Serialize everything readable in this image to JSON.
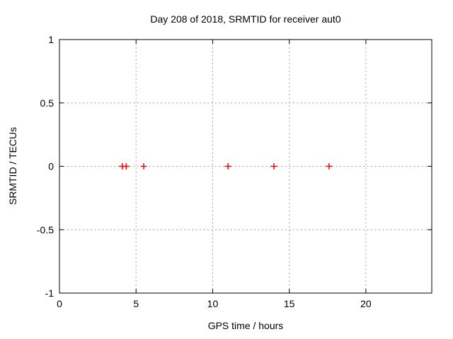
{
  "figure": {
    "background": "#ffffff"
  },
  "chart_data": {
    "type": "scatter",
    "title": "Day 208 of 2018, SRMTID for receiver aut0",
    "xlabel": "GPS time / hours",
    "ylabel": "SRMTID / TECUs",
    "xlim": [
      0,
      24.3
    ],
    "ylim": [
      -1,
      1
    ],
    "xticks": {
      "values": [
        0,
        5,
        10,
        15,
        20
      ],
      "labels": [
        "0",
        "5",
        "10",
        "15",
        "20"
      ]
    },
    "yticks": {
      "values": [
        -1,
        -0.5,
        0,
        0.5,
        1
      ],
      "labels": [
        "-1",
        "-0.5",
        "0",
        "0.5",
        "1"
      ]
    },
    "grid": true,
    "legend": "none",
    "colors": {
      "grid": "#a0a0a0",
      "axis": "#000000",
      "text": "#000000"
    },
    "series": [
      {
        "name": "SRMTID",
        "marker": "plus",
        "color": "#ff0000",
        "points": [
          [
            4.1,
            0
          ],
          [
            4.35,
            0
          ],
          [
            5.5,
            0
          ],
          [
            11.0,
            0
          ],
          [
            14.0,
            0
          ],
          [
            17.6,
            0
          ]
        ]
      }
    ]
  }
}
